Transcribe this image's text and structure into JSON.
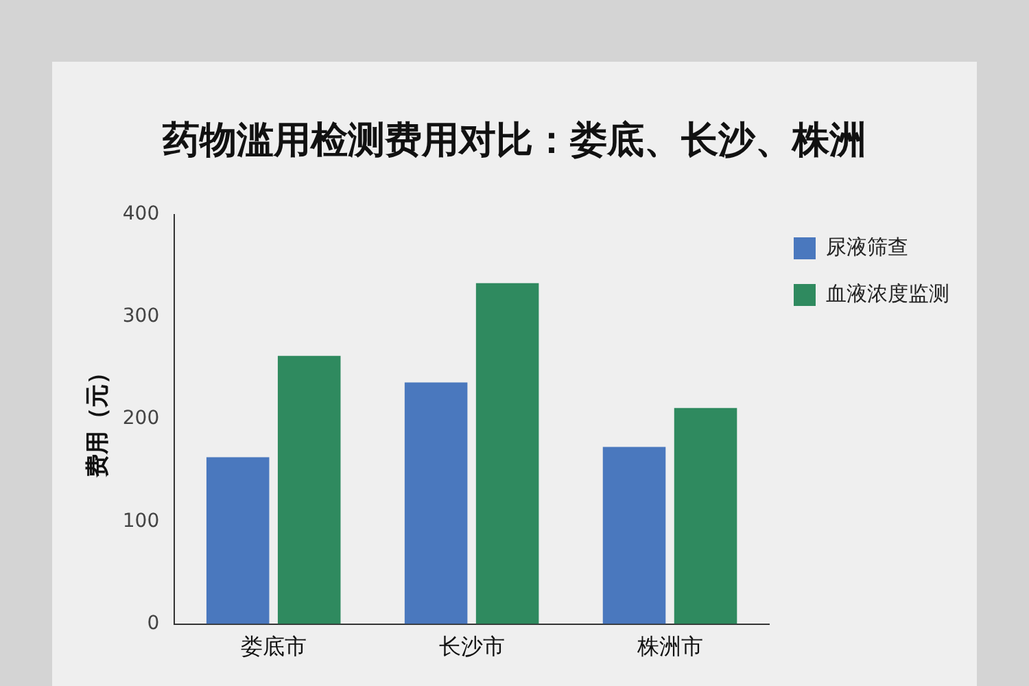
{
  "chart_data": {
    "type": "bar",
    "title": "药物滥用检测费用对比：娄底、长沙、株洲",
    "ylabel": "费用（元）",
    "categories": [
      "娄底市",
      "长沙市",
      "株洲市"
    ],
    "series": [
      {
        "name": "尿液筛查",
        "color": "#4a78be",
        "values": [
          163,
          236,
          173
        ]
      },
      {
        "name": "血液浓度监测",
        "color": "#2f8a5f",
        "values": [
          262,
          333,
          211
        ]
      }
    ],
    "ylim": [
      0,
      400
    ],
    "yticks": [
      0,
      100,
      200,
      300,
      400
    ],
    "grid": false,
    "legend": "top right"
  }
}
